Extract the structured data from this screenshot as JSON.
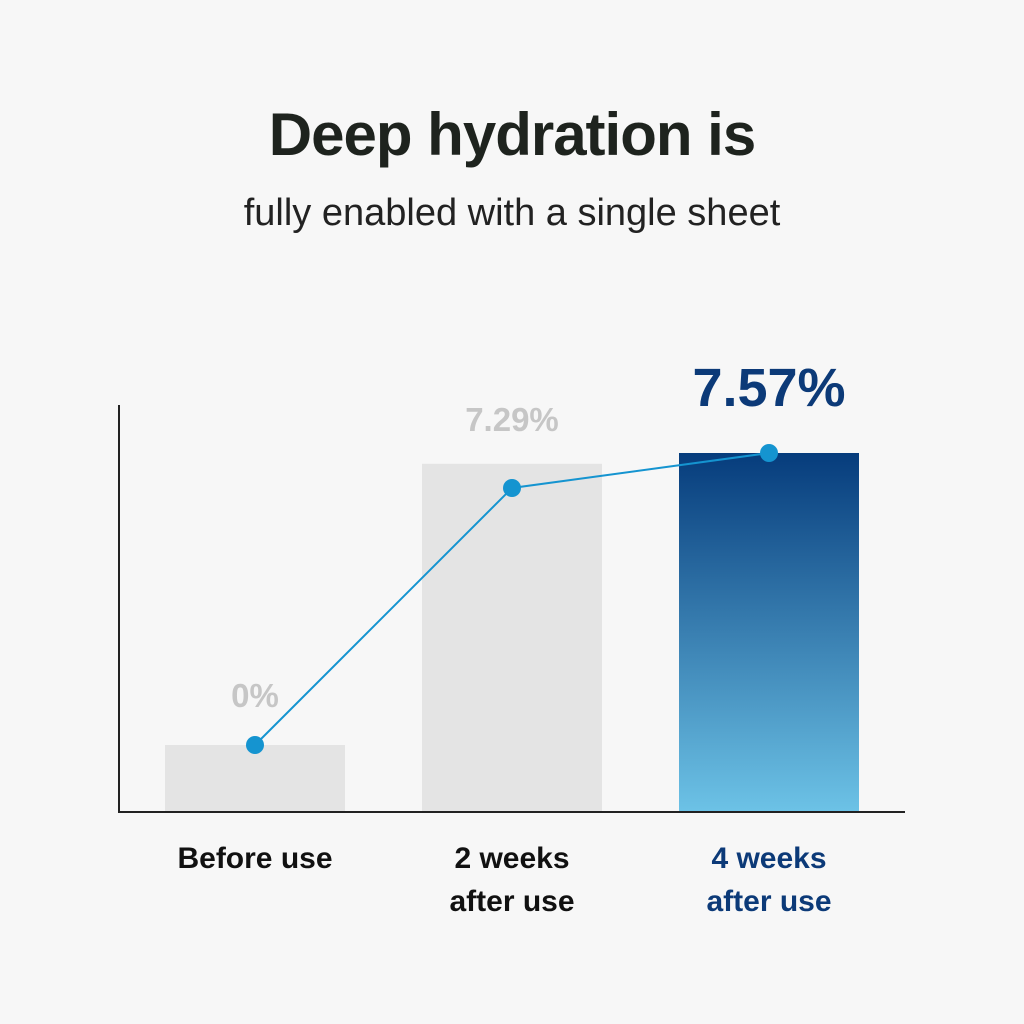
{
  "header": {
    "title": "Deep hydration is",
    "subtitle": "fully enabled with a single sheet"
  },
  "colors": {
    "background": "#f7f7f7",
    "bar_gray": "#e4e4e4",
    "highlight_top": "#063c7c",
    "highlight_bottom": "#6cc2e6",
    "line": "#1594d0",
    "value_gray": "#c6c6c6",
    "highlight_text": "#0c3a78"
  },
  "chart_data": {
    "type": "bar",
    "title": "Deep hydration is",
    "subtitle": "fully enabled with a single sheet",
    "categories": [
      [
        "Before use"
      ],
      [
        "2 weeks",
        "after use"
      ],
      [
        "4 weeks",
        "after use"
      ]
    ],
    "values": [
      0,
      7.29,
      7.57
    ],
    "value_labels": [
      "0%",
      "7.29%",
      "7.57%"
    ],
    "highlight_index": 2,
    "line_overlay": true,
    "xlabel": "",
    "ylabel": "",
    "grid": false
  }
}
